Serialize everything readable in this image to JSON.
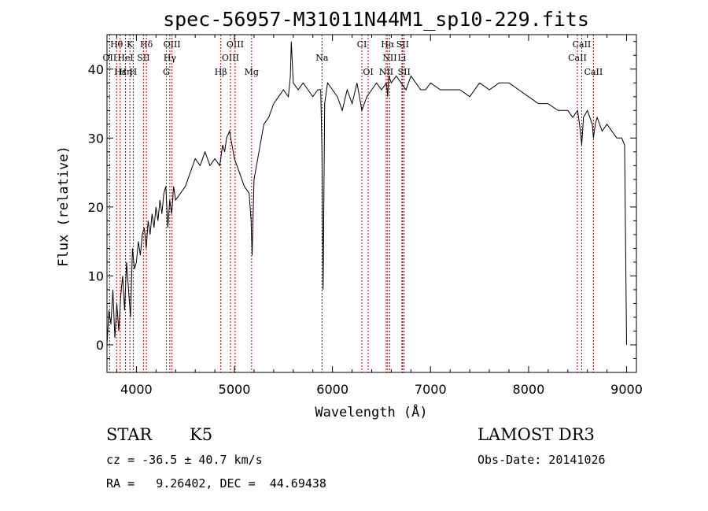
{
  "chart_data": {
    "type": "line",
    "title": "spec-56957-M31011N44M1_sp10-229.fits",
    "xlabel": "Wavelength (Å)",
    "ylabel": "Flux (relative)",
    "xlim": [
      3700,
      9100
    ],
    "ylim": [
      -4,
      45
    ],
    "xticks": [
      4000,
      5000,
      6000,
      7000,
      8000,
      9000
    ],
    "yticks": [
      0,
      10,
      20,
      30,
      40
    ],
    "series": [
      {
        "name": "flux",
        "x": [
          3700,
          3720,
          3740,
          3760,
          3780,
          3800,
          3820,
          3840,
          3860,
          3880,
          3900,
          3920,
          3940,
          3960,
          3980,
          4000,
          4020,
          4040,
          4060,
          4080,
          4100,
          4120,
          4140,
          4160,
          4180,
          4200,
          4220,
          4240,
          4260,
          4280,
          4300,
          4320,
          4340,
          4360,
          4380,
          4400,
          4450,
          4500,
          4550,
          4600,
          4650,
          4700,
          4750,
          4800,
          4850,
          4880,
          4900,
          4920,
          4950,
          5000,
          5050,
          5100,
          5150,
          5170,
          5180,
          5200,
          5250,
          5300,
          5350,
          5400,
          5450,
          5500,
          5550,
          5570,
          5580,
          5600,
          5650,
          5700,
          5750,
          5800,
          5850,
          5880,
          5893,
          5905,
          5920,
          5950,
          6000,
          6050,
          6100,
          6150,
          6200,
          6250,
          6300,
          6350,
          6400,
          6450,
          6500,
          6550,
          6563,
          6575,
          6600,
          6650,
          6700,
          6750,
          6800,
          6850,
          6900,
          6950,
          7000,
          7100,
          7200,
          7300,
          7400,
          7500,
          7600,
          7700,
          7800,
          7900,
          8000,
          8100,
          8200,
          8300,
          8400,
          8450,
          8500,
          8520,
          8542,
          8560,
          8600,
          8650,
          8662,
          8680,
          8700,
          8750,
          8800,
          8850,
          8900,
          8950,
          8980,
          9000
        ],
        "y": [
          0,
          5,
          3,
          8,
          1,
          6,
          2,
          7,
          10,
          5,
          12,
          8,
          4,
          14,
          11,
          12,
          15,
          13,
          16,
          17,
          14,
          18,
          16,
          19,
          17,
          20,
          18,
          21,
          19,
          22,
          23,
          17,
          21,
          19,
          23,
          21,
          22,
          23,
          25,
          27,
          26,
          28,
          26,
          27,
          26,
          29,
          28,
          30,
          31,
          27,
          25,
          23,
          22,
          18,
          13,
          24,
          28,
          32,
          33,
          35,
          36,
          37,
          36,
          39,
          44,
          38,
          37,
          38,
          37,
          36,
          37,
          37,
          28,
          8,
          35,
          38,
          37,
          36,
          34,
          37,
          35,
          38,
          34,
          36,
          37,
          38,
          37,
          38,
          36,
          39,
          38,
          39,
          38,
          37,
          39,
          38,
          37,
          37,
          38,
          37,
          37,
          37,
          36,
          38,
          37,
          38,
          38,
          37,
          36,
          35,
          35,
          34,
          34,
          33,
          34,
          32,
          29,
          33,
          34,
          32,
          30,
          32,
          33,
          31,
          32,
          31,
          30,
          30,
          29,
          0
        ]
      }
    ],
    "lines_top": [
      {
        "label": "Hθ",
        "x": 3798
      },
      {
        "label": "K",
        "x": 3934
      },
      {
        "label": "Hδ",
        "x": 4102
      },
      {
        "label": "OIII",
        "x": 4363
      },
      {
        "label": "OIII",
        "x": 5007
      },
      {
        "label": "CI",
        "x": 6300
      },
      {
        "label": "Hα",
        "x": 6563
      },
      {
        "label": "SII",
        "x": 6716
      },
      {
        "label": "CaII",
        "x": 8542
      }
    ],
    "lines_mid": [
      {
        "label": "OII",
        "x": 3727
      },
      {
        "label": "HeI",
        "x": 3889
      },
      {
        "label": "SII",
        "x": 4072
      },
      {
        "label": "Hγ",
        "x": 4341
      },
      {
        "label": "OIII",
        "x": 4959
      },
      {
        "label": "Na",
        "x": 5893
      },
      {
        "label": "NII",
        "x": 6584
      },
      {
        "label": "Li",
        "x": 6708
      },
      {
        "label": "CaII",
        "x": 8498
      }
    ],
    "lines_low": [
      {
        "label": "Hε",
        "x": 3835
      },
      {
        "label": "Hη",
        "x": 3889
      },
      {
        "label": "H",
        "x": 3968
      },
      {
        "label": "G",
        "x": 4305
      },
      {
        "label": "Hβ",
        "x": 4861
      },
      {
        "label": "Mg",
        "x": 5175
      },
      {
        "label": "OI",
        "x": 6364
      },
      {
        "label": "NII",
        "x": 6548
      },
      {
        "label": "SII",
        "x": 6731
      },
      {
        "label": "CaII",
        "x": 8662
      }
    ]
  },
  "info": {
    "object_class": "STAR",
    "subclass": "K5",
    "survey": "LAMOST DR3",
    "cz": "cz = -36.5 ± 40.7 km/s",
    "obs_date": "Obs-Date: 20141026",
    "radec": "RA =   9.26402, DEC =  44.69438"
  }
}
